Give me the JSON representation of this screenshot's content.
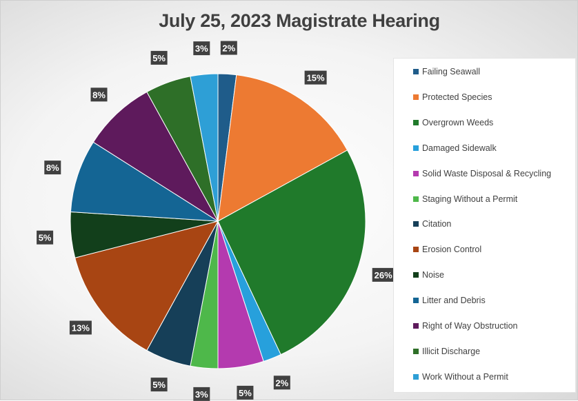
{
  "chart_data": {
    "type": "pie",
    "title": "July 25, 2023 Magistrate Hearing",
    "legend_position": "right",
    "slices": [
      {
        "label": "Failing Seawall",
        "value": 2,
        "value_label": "2%",
        "color": "#1f5c8a"
      },
      {
        "label": "Protected Species",
        "value": 15,
        "value_label": "15%",
        "color": "#ed7a32"
      },
      {
        "label": "Overgrown Weeds",
        "value": 26,
        "value_label": "26%",
        "color": "#207a2b"
      },
      {
        "label": "Damaged Sidewalk",
        "value": 2,
        "value_label": "2%",
        "color": "#27a0dc"
      },
      {
        "label": "Solid Waste Disposal & Recycling",
        "value": 5,
        "value_label": "5%",
        "color": "#b43aaf"
      },
      {
        "label": "Staging Without a Permit",
        "value": 3,
        "value_label": "3%",
        "color": "#4eb84a"
      },
      {
        "label": "Citation",
        "value": 5,
        "value_label": "5%",
        "color": "#163f58"
      },
      {
        "label": "Erosion Control",
        "value": 13,
        "value_label": "13%",
        "color": "#a84513"
      },
      {
        "label": "Noise",
        "value": 5,
        "value_label": "5%",
        "color": "#123f1b"
      },
      {
        "label": "Litter and Debris",
        "value": 8,
        "value_label": "8%",
        "color": "#146594"
      },
      {
        "label": "Right of Way Obstruction",
        "value": 8,
        "value_label": "8%",
        "color": "#5e1a5c"
      },
      {
        "label": "Illicit Discharge",
        "value": 5,
        "value_label": "5%",
        "color": "#2e6f28"
      },
      {
        "label": "Work Without a Permit",
        "value": 3,
        "value_label": "3%",
        "color": "#2e9fd6"
      }
    ]
  }
}
